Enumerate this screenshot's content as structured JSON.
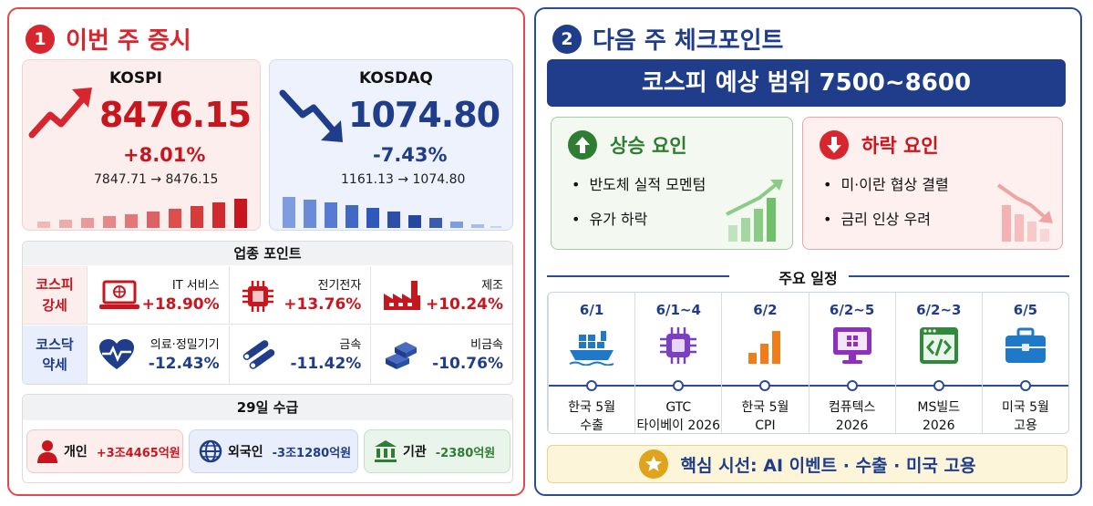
{
  "left": {
    "num": "1",
    "title": "이번 주 증시",
    "kospi": {
      "name": "KOSPI",
      "value": "8476.15",
      "change": "+8.01%",
      "range": "7847.71 → 8476.15"
    },
    "kosdaq": {
      "name": "KOSDAQ",
      "value": "1074.80",
      "change": "-7.43%",
      "range": "1161.13 → 1074.80"
    },
    "sector": {
      "title": "업종 포인트",
      "strong_tag": "코스피\n강세",
      "weak_tag": "코스닥\n약세",
      "strong": [
        {
          "name": "IT 서비스",
          "pct": "+18.90%",
          "icon": "laptop-icon"
        },
        {
          "name": "전기전자",
          "pct": "+13.76%",
          "icon": "chip-icon"
        },
        {
          "name": "제조",
          "pct": "+10.24%",
          "icon": "factory-icon"
        }
      ],
      "weak": [
        {
          "name": "의료·정밀기기",
          "pct": "-12.43%",
          "icon": "heartbeat-icon"
        },
        {
          "name": "금속",
          "pct": "-11.42%",
          "icon": "pipes-icon"
        },
        {
          "name": "비금속",
          "pct": "-10.76%",
          "icon": "blocks-icon"
        }
      ]
    },
    "flows": {
      "title": "29일 수급",
      "individual": {
        "label": "개인",
        "amount": "+3조4465억원"
      },
      "foreign": {
        "label": "외국인",
        "amount": "-3조1280억원"
      },
      "institution": {
        "label": "기관",
        "amount": "-2380억원"
      }
    }
  },
  "right": {
    "num": "2",
    "title": "다음 주 체크포인트",
    "range_banner": "코스피 예상 범위 7500~8600",
    "up": {
      "title": "상승 요인",
      "items": [
        "반도체 실적 모멘텀",
        "유가 하락"
      ]
    },
    "down": {
      "title": "하락 요인",
      "items": [
        "미·이란 협상 결렬",
        "금리 인상 우려"
      ]
    },
    "schedule": {
      "title": "주요 일정",
      "items": [
        {
          "date": "6/1",
          "label1": "한국 5월",
          "label2": "수출",
          "icon": "ship-icon"
        },
        {
          "date": "6/1~4",
          "label1": "GTC",
          "label2": "타이베이 2026",
          "icon": "cpu-icon"
        },
        {
          "date": "6/2",
          "label1": "한국 5월",
          "label2": "CPI",
          "icon": "bar-chart-icon"
        },
        {
          "date": "6/2~5",
          "label1": "컴퓨텍스",
          "label2": "2026",
          "icon": "monitor-icon"
        },
        {
          "date": "6/2~3",
          "label1": "MS빌드",
          "label2": "2026",
          "icon": "code-window-icon"
        },
        {
          "date": "6/5",
          "label1": "미국 5월",
          "label2": "고용",
          "icon": "briefcase-icon"
        }
      ]
    },
    "focus": "핵심 시선: AI 이벤트 · 수출 · 미국 고용"
  },
  "colors": {
    "red": "#d7262e",
    "navy": "#1f3d8a",
    "green": "#2e7d32",
    "gold": "#e0a31c"
  }
}
